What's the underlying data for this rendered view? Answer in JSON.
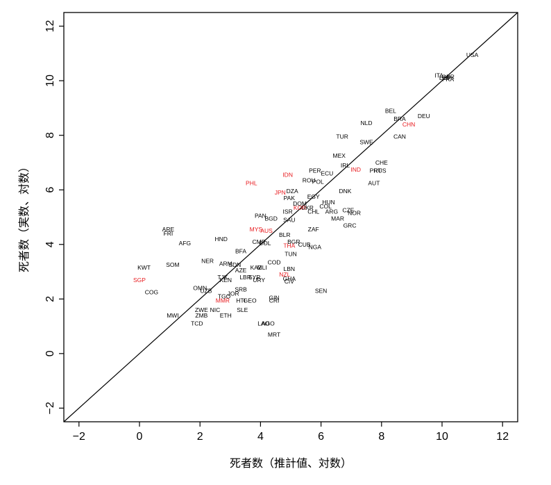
{
  "chart_data": {
    "type": "scatter",
    "xlabel": "死者数（推計値、対数）",
    "ylabel": "死者数（実数、対数）",
    "xlim": [
      -2.5,
      12.5
    ],
    "ylim": [
      -2.5,
      12.5
    ],
    "xticks": [
      "−2",
      "0",
      "2",
      "4",
      "6",
      "8",
      "10",
      "12"
    ],
    "yticks": [
      "−2",
      "0",
      "2",
      "4",
      "6",
      "8",
      "10",
      "12"
    ],
    "reference_line": "y = x",
    "colors": {
      "default": "#000000",
      "highlight": "#e8191d"
    },
    "points": [
      {
        "label": "USA",
        "x": 11.0,
        "y": 10.95,
        "c": "default"
      },
      {
        "label": "ITA",
        "x": 9.9,
        "y": 10.2,
        "c": "default"
      },
      {
        "label": "GBR",
        "x": 10.2,
        "y": 10.15,
        "c": "default"
      },
      {
        "label": "ESP",
        "x": 10.1,
        "y": 10.1,
        "c": "default"
      },
      {
        "label": "FRA",
        "x": 10.2,
        "y": 10.05,
        "c": "default"
      },
      {
        "label": "BEL",
        "x": 8.3,
        "y": 8.9,
        "c": "default"
      },
      {
        "label": "DEU",
        "x": 9.4,
        "y": 8.7,
        "c": "default"
      },
      {
        "label": "BRA",
        "x": 8.6,
        "y": 8.6,
        "c": "default"
      },
      {
        "label": "CHN",
        "x": 8.9,
        "y": 8.4,
        "c": "highlight"
      },
      {
        "label": "NLD",
        "x": 7.5,
        "y": 8.45,
        "c": "default"
      },
      {
        "label": "CAN",
        "x": 8.6,
        "y": 7.95,
        "c": "default"
      },
      {
        "label": "TUR",
        "x": 6.7,
        "y": 7.95,
        "c": "default"
      },
      {
        "label": "SWE",
        "x": 7.5,
        "y": 7.75,
        "c": "default"
      },
      {
        "label": "MEX",
        "x": 6.6,
        "y": 7.25,
        "c": "default"
      },
      {
        "label": "CHE",
        "x": 8.0,
        "y": 7.0,
        "c": "default"
      },
      {
        "label": "IRL",
        "x": 6.8,
        "y": 6.9,
        "c": "default"
      },
      {
        "label": "IND",
        "x": 7.15,
        "y": 6.75,
        "c": "highlight"
      },
      {
        "label": "PRT",
        "x": 7.8,
        "y": 6.7,
        "c": "default"
      },
      {
        "label": "RUS",
        "x": 7.95,
        "y": 6.7,
        "c": "default"
      },
      {
        "label": "PER",
        "x": 5.8,
        "y": 6.7,
        "c": "default"
      },
      {
        "label": "ECU",
        "x": 6.2,
        "y": 6.6,
        "c": "default"
      },
      {
        "label": "IDN",
        "x": 4.9,
        "y": 6.55,
        "c": "highlight"
      },
      {
        "label": "ROU",
        "x": 5.6,
        "y": 6.35,
        "c": "default"
      },
      {
        "label": "POL",
        "x": 5.9,
        "y": 6.3,
        "c": "default"
      },
      {
        "label": "AUT",
        "x": 7.75,
        "y": 6.25,
        "c": "default"
      },
      {
        "label": "PHL",
        "x": 3.7,
        "y": 6.25,
        "c": "highlight"
      },
      {
        "label": "DNK",
        "x": 6.8,
        "y": 5.95,
        "c": "default"
      },
      {
        "label": "DZA",
        "x": 5.05,
        "y": 5.95,
        "c": "default"
      },
      {
        "label": "JPN",
        "x": 4.65,
        "y": 5.9,
        "c": "highlight"
      },
      {
        "label": "EGY",
        "x": 5.75,
        "y": 5.75,
        "c": "default"
      },
      {
        "label": "PAK",
        "x": 4.95,
        "y": 5.7,
        "c": "default"
      },
      {
        "label": "HUN",
        "x": 6.25,
        "y": 5.55,
        "c": "default"
      },
      {
        "label": "DOM",
        "x": 5.3,
        "y": 5.5,
        "c": "default"
      },
      {
        "label": "COL",
        "x": 6.15,
        "y": 5.4,
        "c": "default"
      },
      {
        "label": "KOR",
        "x": 5.3,
        "y": 5.35,
        "c": "highlight"
      },
      {
        "label": "UKR",
        "x": 5.55,
        "y": 5.35,
        "c": "default"
      },
      {
        "label": "CZE",
        "x": 6.9,
        "y": 5.25,
        "c": "default"
      },
      {
        "label": "CHL",
        "x": 5.75,
        "y": 5.2,
        "c": "default"
      },
      {
        "label": "ARG",
        "x": 6.35,
        "y": 5.2,
        "c": "default"
      },
      {
        "label": "ISR",
        "x": 4.9,
        "y": 5.2,
        "c": "default"
      },
      {
        "label": "NOR",
        "x": 7.1,
        "y": 5.15,
        "c": "default"
      },
      {
        "label": "PAN",
        "x": 4.0,
        "y": 5.05,
        "c": "default"
      },
      {
        "label": "BGD",
        "x": 4.35,
        "y": 4.95,
        "c": "default"
      },
      {
        "label": "SAU",
        "x": 4.95,
        "y": 4.9,
        "c": "default"
      },
      {
        "label": "MAR",
        "x": 6.55,
        "y": 4.95,
        "c": "default"
      },
      {
        "label": "GRC",
        "x": 6.95,
        "y": 4.7,
        "c": "default"
      },
      {
        "label": "ZAF",
        "x": 5.75,
        "y": 4.55,
        "c": "default"
      },
      {
        "label": "ARE",
        "x": 0.95,
        "y": 4.55,
        "c": "default"
      },
      {
        "label": "FRI",
        "x": 0.95,
        "y": 4.4,
        "c": "default"
      },
      {
        "label": "MYS",
        "x": 3.85,
        "y": 4.55,
        "c": "highlight"
      },
      {
        "label": "AUS",
        "x": 4.2,
        "y": 4.5,
        "c": "highlight"
      },
      {
        "label": "BLR",
        "x": 4.8,
        "y": 4.35,
        "c": "default"
      },
      {
        "label": "HND",
        "x": 2.7,
        "y": 4.2,
        "c": "default"
      },
      {
        "label": "BGR",
        "x": 5.1,
        "y": 4.1,
        "c": "default"
      },
      {
        "label": "AFG",
        "x": 1.5,
        "y": 4.05,
        "c": "default"
      },
      {
        "label": "CMR",
        "x": 3.95,
        "y": 4.1,
        "c": "default"
      },
      {
        "label": "BOL",
        "x": 4.15,
        "y": 4.05,
        "c": "default"
      },
      {
        "label": "CUB",
        "x": 5.45,
        "y": 4.0,
        "c": "default"
      },
      {
        "label": "THA",
        "x": 4.95,
        "y": 3.95,
        "c": "highlight"
      },
      {
        "label": "NGA",
        "x": 5.8,
        "y": 3.9,
        "c": "default"
      },
      {
        "label": "BFA",
        "x": 3.35,
        "y": 3.75,
        "c": "default"
      },
      {
        "label": "TUN",
        "x": 5.0,
        "y": 3.65,
        "c": "default"
      },
      {
        "label": "NER",
        "x": 2.25,
        "y": 3.4,
        "c": "default"
      },
      {
        "label": "ARM",
        "x": 2.85,
        "y": 3.3,
        "c": "default"
      },
      {
        "label": "SOM",
        "x": 1.1,
        "y": 3.25,
        "c": "default"
      },
      {
        "label": "COD",
        "x": 4.45,
        "y": 3.35,
        "c": "default"
      },
      {
        "label": "SDN",
        "x": 3.15,
        "y": 3.25,
        "c": "default"
      },
      {
        "label": "KWT",
        "x": 0.15,
        "y": 3.15,
        "c": "default"
      },
      {
        "label": "KAZ",
        "x": 3.85,
        "y": 3.15,
        "c": "default"
      },
      {
        "label": "MLI",
        "x": 4.05,
        "y": 3.15,
        "c": "default"
      },
      {
        "label": "AZE",
        "x": 3.35,
        "y": 3.05,
        "c": "default"
      },
      {
        "label": "LBN",
        "x": 4.95,
        "y": 3.1,
        "c": "default"
      },
      {
        "label": "NZL",
        "x": 4.8,
        "y": 2.9,
        "c": "highlight"
      },
      {
        "label": "TJK",
        "x": 2.75,
        "y": 2.8,
        "c": "default"
      },
      {
        "label": "KEN",
        "x": 2.85,
        "y": 2.7,
        "c": "default"
      },
      {
        "label": "LBR",
        "x": 3.5,
        "y": 2.8,
        "c": "default"
      },
      {
        "label": "SYR",
        "x": 3.8,
        "y": 2.8,
        "c": "default"
      },
      {
        "label": "URY",
        "x": 3.95,
        "y": 2.7,
        "c": "default"
      },
      {
        "label": "GHA",
        "x": 4.95,
        "y": 2.75,
        "c": "default"
      },
      {
        "label": "CIV",
        "x": 4.95,
        "y": 2.65,
        "c": "default"
      },
      {
        "label": "SGP",
        "x": 0.0,
        "y": 2.7,
        "c": "highlight"
      },
      {
        "label": "OMN",
        "x": 2.0,
        "y": 2.4,
        "c": "default"
      },
      {
        "label": "UZB",
        "x": 2.2,
        "y": 2.3,
        "c": "default"
      },
      {
        "label": "COG",
        "x": 0.4,
        "y": 2.25,
        "c": "default"
      },
      {
        "label": "SRB",
        "x": 3.35,
        "y": 2.35,
        "c": "default"
      },
      {
        "label": "JOR",
        "x": 3.1,
        "y": 2.2,
        "c": "default"
      },
      {
        "label": "TGO",
        "x": 2.8,
        "y": 2.1,
        "c": "default"
      },
      {
        "label": "SEN",
        "x": 6.0,
        "y": 2.3,
        "c": "default"
      },
      {
        "label": "GIN",
        "x": 4.45,
        "y": 2.05,
        "c": "default"
      },
      {
        "label": "MMR",
        "x": 2.75,
        "y": 1.95,
        "c": "highlight"
      },
      {
        "label": "HTI",
        "x": 3.35,
        "y": 1.95,
        "c": "default"
      },
      {
        "label": "GEO",
        "x": 3.65,
        "y": 1.95,
        "c": "default"
      },
      {
        "label": "CRI",
        "x": 4.45,
        "y": 1.95,
        "c": "default"
      },
      {
        "label": "ZWE",
        "x": 2.05,
        "y": 1.6,
        "c": "default"
      },
      {
        "label": "NIC",
        "x": 2.5,
        "y": 1.6,
        "c": "default"
      },
      {
        "label": "SLE",
        "x": 3.4,
        "y": 1.6,
        "c": "default"
      },
      {
        "label": "MWI",
        "x": 1.1,
        "y": 1.4,
        "c": "default"
      },
      {
        "label": "ZMB",
        "x": 2.05,
        "y": 1.4,
        "c": "default"
      },
      {
        "label": "ETH",
        "x": 2.85,
        "y": 1.4,
        "c": "default"
      },
      {
        "label": "TCD",
        "x": 1.9,
        "y": 1.1,
        "c": "default"
      },
      {
        "label": "LAO",
        "x": 4.1,
        "y": 1.1,
        "c": "default"
      },
      {
        "label": "AGO",
        "x": 4.25,
        "y": 1.1,
        "c": "default"
      },
      {
        "label": "MRT",
        "x": 4.45,
        "y": 0.7,
        "c": "default"
      }
    ]
  }
}
